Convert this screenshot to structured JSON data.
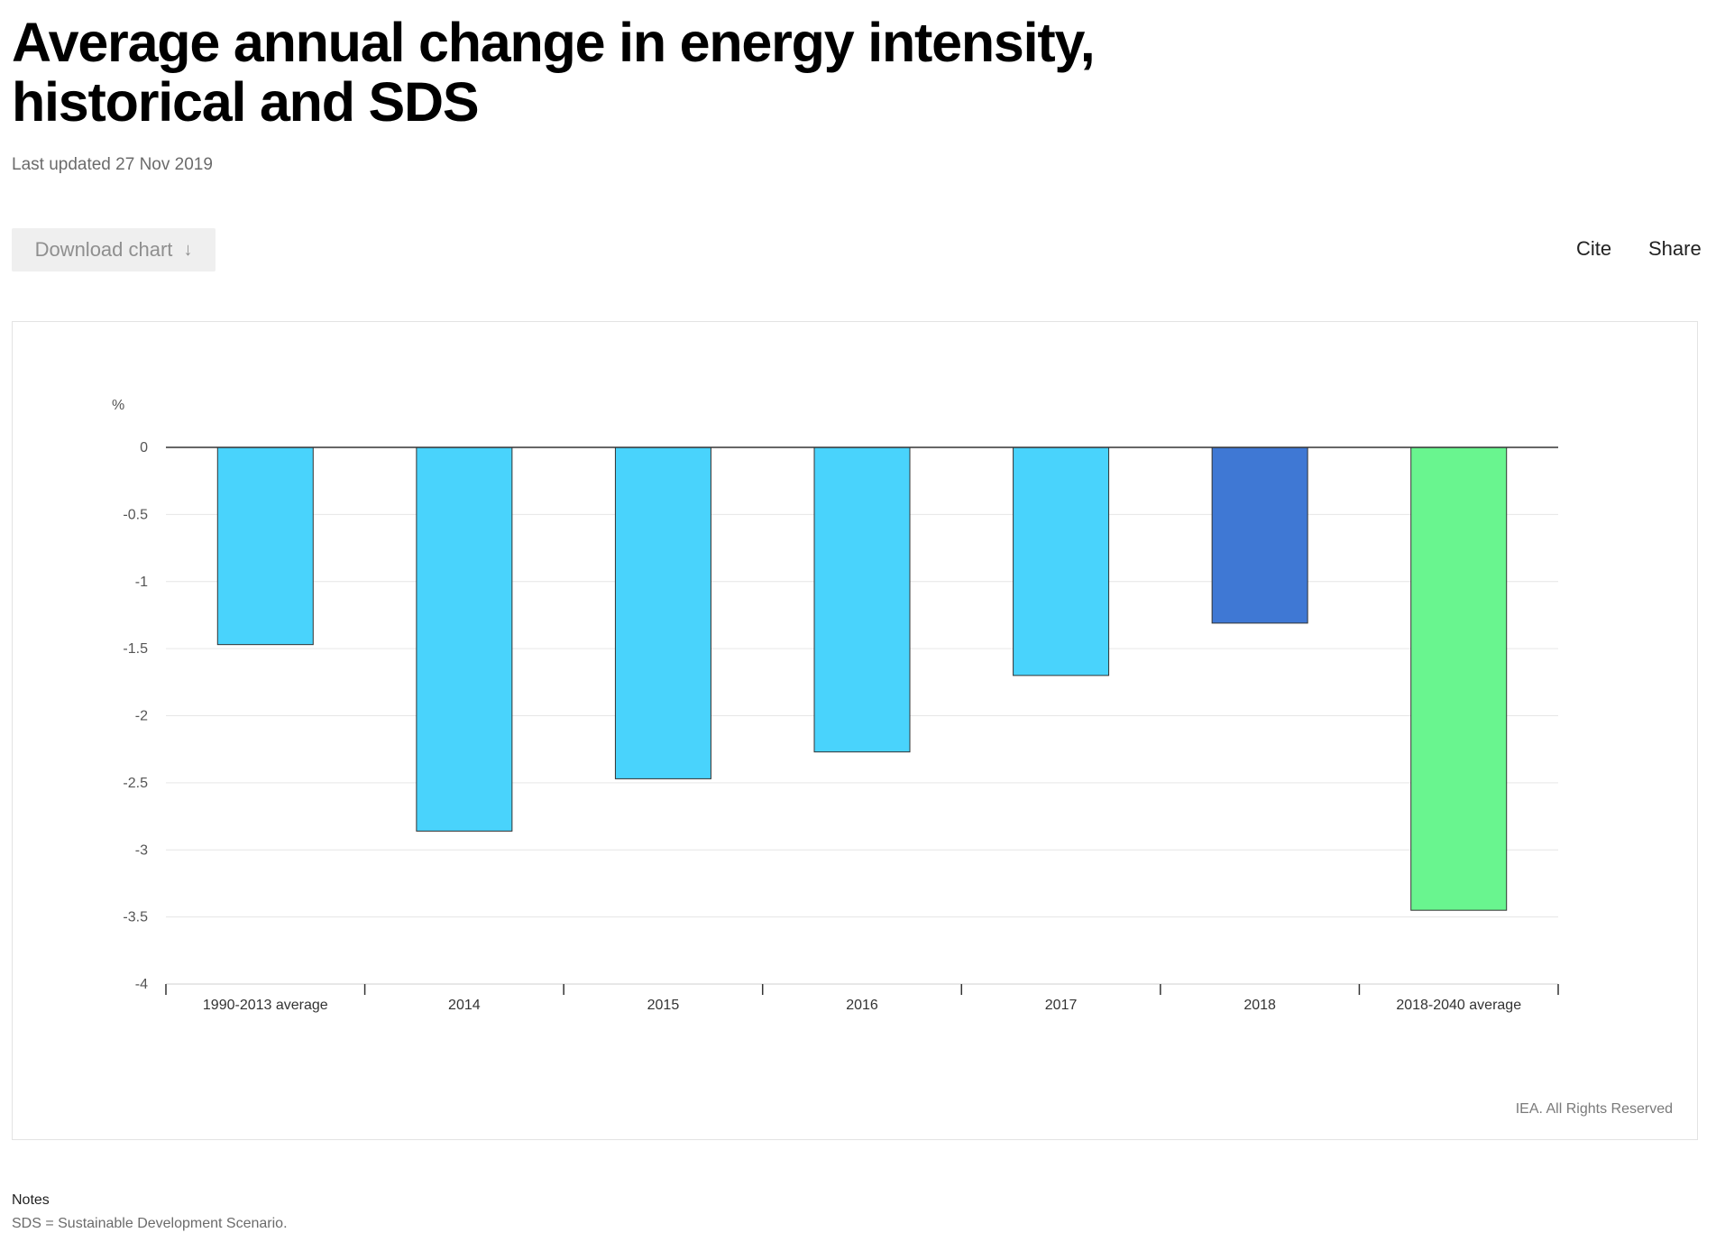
{
  "header": {
    "title": "Average annual change in energy intensity, historical and SDS",
    "last_updated": "Last updated 27 Nov 2019"
  },
  "toolbar": {
    "download_label": "Download chart",
    "download_icon": "arrow-down-icon",
    "cite_label": "Cite",
    "share_label": "Share"
  },
  "chart_data": {
    "type": "bar",
    "ylabel": "%",
    "xlabel": "",
    "ylim": [
      -4,
      0
    ],
    "yticks": [
      0,
      -0.5,
      -1,
      -1.5,
      -2,
      -2.5,
      -3,
      -3.5,
      -4
    ],
    "ytick_labels": [
      "0",
      "-0.5",
      "-1",
      "-1.5",
      "-2",
      "-2.5",
      "-3",
      "-3.5",
      "-4"
    ],
    "grid": true,
    "categories": [
      "1990-2013 average",
      "2014",
      "2015",
      "2016",
      "2017",
      "2018",
      "2018-2040 average"
    ],
    "values": [
      -1.47,
      -2.86,
      -2.47,
      -2.27,
      -1.7,
      -1.31,
      -3.45
    ],
    "colors": [
      "#49d3fc",
      "#49d3fc",
      "#49d3fc",
      "#49d3fc",
      "#49d3fc",
      "#3f78d4",
      "#69f58f"
    ]
  },
  "credit": "IEA. All Rights Reserved",
  "notes": {
    "label": "Notes",
    "text": "SDS = Sustainable Development Scenario."
  }
}
